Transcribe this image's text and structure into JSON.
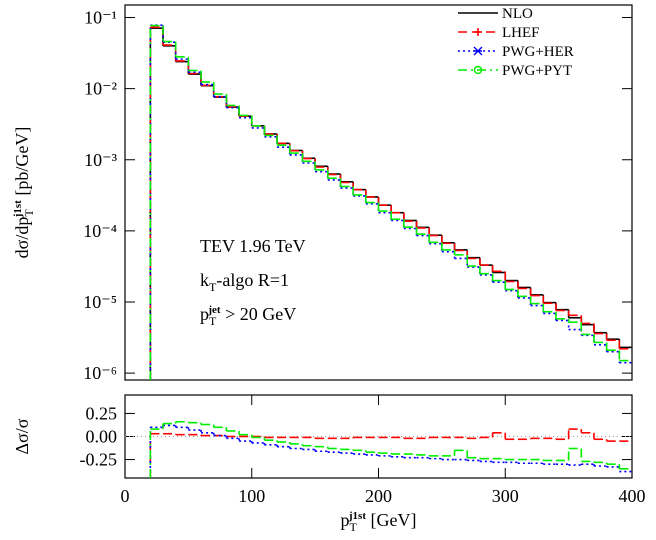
{
  "chart_data": [
    {
      "type": "histogram",
      "log_y": true,
      "legend": "upper right",
      "ylabel": {
        "base": "dσ/dp",
        "sub": "T",
        "sup": "j1st",
        "rest": " [pb/GeV]"
      },
      "annotations": [
        {
          "base": "TEV 1.96 TeV"
        },
        {
          "base": "k",
          "sub": "T",
          "rest": "-algo R=1"
        },
        {
          "base": "p",
          "sub": "T",
          "sup": "jet",
          "rest": " > 20 GeV"
        }
      ],
      "xlim": [
        0,
        400
      ],
      "ylim": [
        8e-07,
        0.15
      ],
      "yticks": [
        {
          "value": 0.1,
          "label": "10⁻¹"
        },
        {
          "value": 0.01,
          "label": "10⁻²"
        },
        {
          "value": 0.001,
          "label": "10⁻³"
        },
        {
          "value": 0.0001,
          "label": "10⁻⁴"
        },
        {
          "value": 1e-05,
          "label": "10⁻⁵"
        },
        {
          "value": 1e-06,
          "label": "10⁻⁶"
        }
      ],
      "bins": [
        20,
        30,
        40,
        50,
        60,
        70,
        80,
        90,
        100,
        110,
        120,
        130,
        140,
        150,
        160,
        170,
        180,
        190,
        200,
        210,
        220,
        230,
        240,
        250,
        260,
        270,
        280,
        290,
        300,
        310,
        320,
        330,
        340,
        350,
        360,
        370,
        380,
        390,
        400
      ],
      "series": [
        {
          "name": "NLO",
          "color": "#000000",
          "line_style": "solid",
          "marker": "none",
          "values": [
            0.071,
            0.04,
            0.024,
            0.016,
            0.011,
            0.0076,
            0.0055,
            0.0041,
            0.003,
            0.0023,
            0.0017,
            0.00135,
            0.00105,
            0.00081,
            0.00063,
            0.00049,
            0.00038,
            0.0003,
            0.00023,
            0.00018,
            0.00014,
            0.000112,
            8.7e-05,
            6.8e-05,
            5.4e-05,
            4.2e-05,
            3.3e-05,
            2.6e-05,
            2e-05,
            1.6e-05,
            1.26e-05,
            9.8e-06,
            7.8e-06,
            6e-06,
            4.8e-06,
            3.7e-06,
            3e-06,
            2.3e-06
          ]
        },
        {
          "name": "LHEF",
          "color": "#ff0000",
          "line_style": "dashed",
          "marker": "plus",
          "values": [
            0.073,
            0.041,
            0.0245,
            0.0163,
            0.0111,
            0.0077,
            0.0055,
            0.0041,
            0.003,
            0.0023,
            0.0017,
            0.00134,
            0.00104,
            0.00079,
            0.00062,
            0.00048,
            0.00038,
            0.0003,
            0.00023,
            0.00018,
            0.000137,
            0.00011,
            8.6e-05,
            6.7e-05,
            5.3e-05,
            4.1e-05,
            3.3e-05,
            2.7e-05,
            1.94e-05,
            1.55e-05,
            1.23e-05,
            9.6e-06,
            7.6e-06,
            6.5e-06,
            5e-06,
            3.6e-06,
            2.9e-06,
            2.2e-06
          ]
        },
        {
          "name": "PWG+HER",
          "color": "#0000ff",
          "line_style": "dotted",
          "marker": "star",
          "values": [
            0.078,
            0.045,
            0.026,
            0.017,
            0.0114,
            0.0077,
            0.0054,
            0.0039,
            0.0028,
            0.0021,
            0.0015,
            0.00117,
            0.0009,
            0.00068,
            0.00052,
            0.0004,
            0.00031,
            0.00024,
            0.00018,
            0.00014,
            0.000108,
            8.6e-05,
            6.6e-05,
            5.1e-05,
            4.1e-05,
            3.1e-05,
            2.4e-05,
            1.9e-05,
            1.44e-05,
            1.14e-05,
            8.9e-06,
            6.9e-06,
            5.5e-06,
            4.1e-06,
            3.4e-06,
            2.5e-06,
            2e-06,
            1.4e-06
          ]
        },
        {
          "name": "PWG+PYT",
          "color": "#00ee00",
          "line_style": "dashdot",
          "marker": "circle",
          "values": [
            0.077,
            0.046,
            0.028,
            0.018,
            0.0124,
            0.0084,
            0.0058,
            0.0042,
            0.003,
            0.0022,
            0.0016,
            0.00124,
            0.00095,
            0.00072,
            0.00055,
            0.00042,
            0.00032,
            0.00025,
            0.00019,
            0.000146,
            0.000113,
            9e-05,
            6.9e-05,
            5.4e-05,
            4.6e-05,
            3.2e-05,
            2.5e-05,
            2e-05,
            1.5e-05,
            1.2e-05,
            9.5e-06,
            7.3e-06,
            5.8e-06,
            5.2e-06,
            3.5e-06,
            2.7e-06,
            2.1e-06,
            1.5e-06
          ]
        }
      ]
    },
    {
      "type": "histogram",
      "log_y": false,
      "ylabel": {
        "base": "Δσ/σ"
      },
      "xlabel": {
        "base": "p",
        "sub": "T",
        "sup": "j1st",
        "rest": " [GeV]"
      },
      "xlim": [
        0,
        400
      ],
      "ylim": [
        -0.45,
        0.45
      ],
      "xticks": [
        0,
        100,
        200,
        300,
        400
      ],
      "yticks": [
        0.25,
        {
          "value": 0,
          "label": "0.00"
        },
        -0.25
      ],
      "bins": [
        20,
        30,
        40,
        50,
        60,
        70,
        80,
        90,
        100,
        110,
        120,
        130,
        140,
        150,
        160,
        170,
        180,
        190,
        200,
        210,
        220,
        230,
        240,
        250,
        260,
        270,
        280,
        290,
        300,
        310,
        320,
        330,
        340,
        350,
        360,
        370,
        380,
        390,
        400
      ],
      "series": [
        {
          "name": "LHEF",
          "color": "#ff0000",
          "line_style": "dashed",
          "values": [
            0.03,
            0.03,
            0.02,
            0.02,
            0.01,
            0.01,
            0.0,
            0.0,
            0.0,
            -0.01,
            -0.01,
            -0.01,
            -0.01,
            -0.02,
            -0.02,
            -0.02,
            -0.01,
            -0.01,
            -0.01,
            -0.01,
            -0.02,
            -0.02,
            -0.01,
            -0.01,
            -0.01,
            -0.02,
            -0.01,
            0.04,
            -0.03,
            -0.03,
            -0.02,
            -0.02,
            -0.03,
            0.08,
            0.04,
            -0.03,
            -0.05,
            -0.05
          ]
        },
        {
          "name": "PWG+HER",
          "color": "#0000ff",
          "line_style": "dotted",
          "values": [
            0.1,
            0.12,
            0.1,
            0.07,
            0.04,
            0.01,
            -0.02,
            -0.05,
            -0.07,
            -0.09,
            -0.11,
            -0.13,
            -0.14,
            -0.16,
            -0.17,
            -0.18,
            -0.19,
            -0.2,
            -0.21,
            -0.22,
            -0.23,
            -0.23,
            -0.24,
            -0.25,
            -0.25,
            -0.26,
            -0.27,
            -0.28,
            -0.28,
            -0.29,
            -0.29,
            -0.3,
            -0.3,
            -0.31,
            -0.3,
            -0.32,
            -0.33,
            -0.38
          ]
        },
        {
          "name": "PWG+PYT",
          "color": "#00ee00",
          "line_style": "dashdot",
          "values": [
            0.08,
            0.14,
            0.16,
            0.15,
            0.13,
            0.1,
            0.06,
            0.02,
            -0.01,
            -0.04,
            -0.06,
            -0.08,
            -0.1,
            -0.11,
            -0.13,
            -0.14,
            -0.15,
            -0.17,
            -0.18,
            -0.19,
            -0.19,
            -0.2,
            -0.21,
            -0.21,
            -0.15,
            -0.23,
            -0.24,
            -0.24,
            -0.25,
            -0.25,
            -0.25,
            -0.26,
            -0.26,
            -0.13,
            -0.27,
            -0.28,
            -0.3,
            -0.35
          ]
        }
      ]
    }
  ]
}
